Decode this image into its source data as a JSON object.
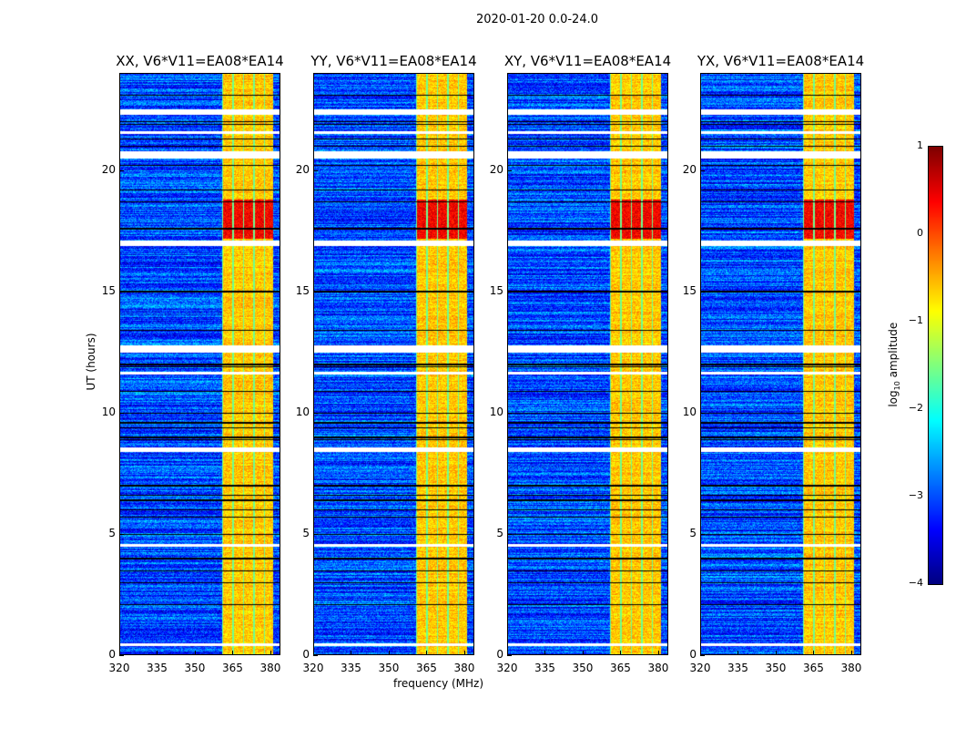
{
  "chart_data": {
    "type": "heatmap",
    "title": "2020-01-20 0.0-24.0",
    "xlabel": "frequency (MHz)",
    "ylabel": "UT (hours)",
    "xlim": [
      320,
      384
    ],
    "ylim": [
      0,
      24
    ],
    "xticks": [
      320,
      335,
      350,
      365,
      380
    ],
    "yticks": [
      0,
      5,
      10,
      15,
      20
    ],
    "colormap": "jet",
    "colorbar": {
      "label_prefix": "log",
      "label_sub": "10",
      "label_suffix": " amplitude",
      "range": [
        -4,
        1
      ],
      "ticks": [
        1,
        0,
        -1,
        -2,
        -3,
        -4
      ]
    },
    "panels": [
      {
        "title": "XX, V6*V11=EA08*EA14"
      },
      {
        "title": "YY, V6*V11=EA08*EA14"
      },
      {
        "title": "XY, V6*V11=EA08*EA14"
      },
      {
        "title": "YX, V6*V11=EA08*EA14"
      }
    ],
    "background_level": -3.0,
    "rfi_band_MHz": [
      360.5,
      381
    ],
    "rfi_band_level": -0.6,
    "strong_rfi_hours": [
      17.2,
      18.8
    ],
    "strong_rfi_level": 0.4,
    "flagged_hours": [
      [
        22.3,
        22.5
      ],
      [
        21.5,
        21.6
      ],
      [
        20.5,
        20.8
      ],
      [
        16.9,
        17.1
      ],
      [
        12.5,
        12.8
      ],
      [
        11.6,
        11.7
      ],
      [
        8.4,
        8.6
      ],
      [
        4.5,
        4.6
      ],
      [
        0.4,
        0.5
      ]
    ],
    "dark_line_hours": [
      23.1,
      22.0,
      21.9,
      21.3,
      21.0,
      20.2,
      19.2,
      18.7,
      17.6,
      15.0,
      13.4,
      12.0,
      11.9,
      10.9,
      10.0,
      9.6,
      9.4,
      9.0,
      8.9,
      7.0,
      6.6,
      6.4,
      6.0,
      5.7,
      5.0,
      4.0,
      3.5,
      3.0,
      2.1,
      0.5
    ]
  }
}
